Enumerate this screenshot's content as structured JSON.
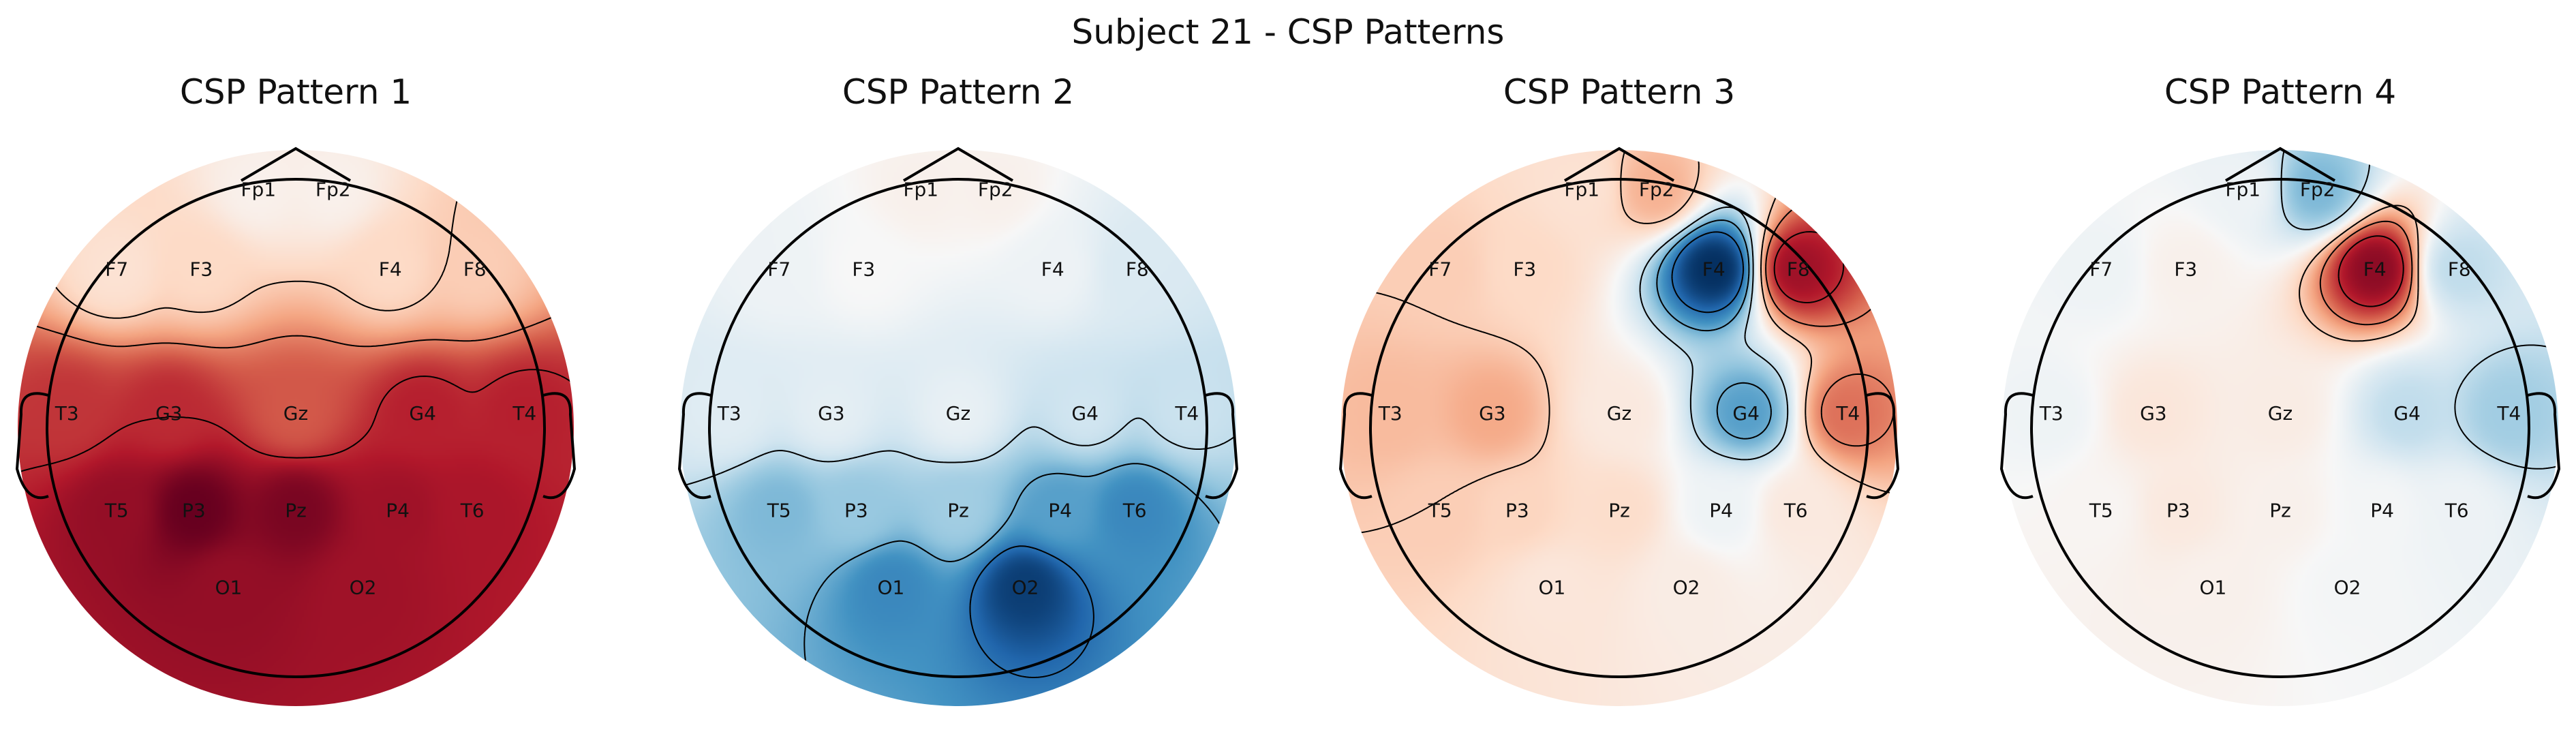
{
  "figure": {
    "title": "Subject 21 - CSP Patterns"
  },
  "chart_data": {
    "type": "heatmap",
    "subtype": "eeg-topomap",
    "colormap": "RdBu_r",
    "electrodes": [
      "Fp1",
      "Fp2",
      "F7",
      "F3",
      "F4",
      "F8",
      "T3",
      "G3",
      "Gz",
      "G4",
      "T4",
      "T5",
      "P3",
      "Pz",
      "P4",
      "T6",
      "O1",
      "O2"
    ],
    "panels": [
      {
        "title": "CSP Pattern 1",
        "values": {
          "Fp1": 0.05,
          "Fp2": 0.05,
          "F7": 0.15,
          "F3": 0.2,
          "F4": 0.2,
          "F8": 0.25,
          "T3": 0.72,
          "G3": 0.75,
          "Gz": 0.62,
          "G4": 0.78,
          "T4": 0.78,
          "T5": 0.88,
          "P3": 1.0,
          "Pz": 0.95,
          "P4": 0.85,
          "T6": 0.82,
          "O1": 0.88,
          "O2": 0.85
        }
      },
      {
        "title": "CSP Pattern 2",
        "values": {
          "Fp1": 0.05,
          "Fp2": 0.05,
          "F7": -0.05,
          "F3": 0.0,
          "F4": -0.05,
          "F8": -0.15,
          "T3": -0.12,
          "G3": -0.1,
          "Gz": -0.08,
          "G4": -0.2,
          "T4": -0.22,
          "T5": -0.45,
          "P3": -0.38,
          "Pz": -0.35,
          "P4": -0.55,
          "T6": -0.65,
          "O1": -0.65,
          "O2": -0.95
        }
      },
      {
        "title": "CSP Pattern 3",
        "values": {
          "Fp1": 0.15,
          "Fp2": 0.35,
          "F7": 0.25,
          "F3": 0.2,
          "F4": -1.0,
          "F8": 0.85,
          "T3": 0.32,
          "G3": 0.38,
          "Gz": 0.1,
          "G4": -0.55,
          "T4": 0.55,
          "T5": 0.25,
          "P3": 0.22,
          "Pz": 0.18,
          "P4": -0.05,
          "T6": 0.1,
          "O1": 0.12,
          "O2": 0.08
        }
      },
      {
        "title": "CSP Pattern 4",
        "values": {
          "Fp1": -0.05,
          "Fp2": -0.45,
          "F7": -0.05,
          "F3": 0.05,
          "F4": 0.9,
          "F8": -0.25,
          "T3": -0.05,
          "G3": 0.12,
          "Gz": 0.08,
          "G4": -0.25,
          "T4": -0.35,
          "T5": 0.02,
          "P3": 0.1,
          "Pz": 0.05,
          "P4": -0.02,
          "T6": -0.05,
          "O1": 0.05,
          "O2": -0.02
        }
      }
    ]
  }
}
